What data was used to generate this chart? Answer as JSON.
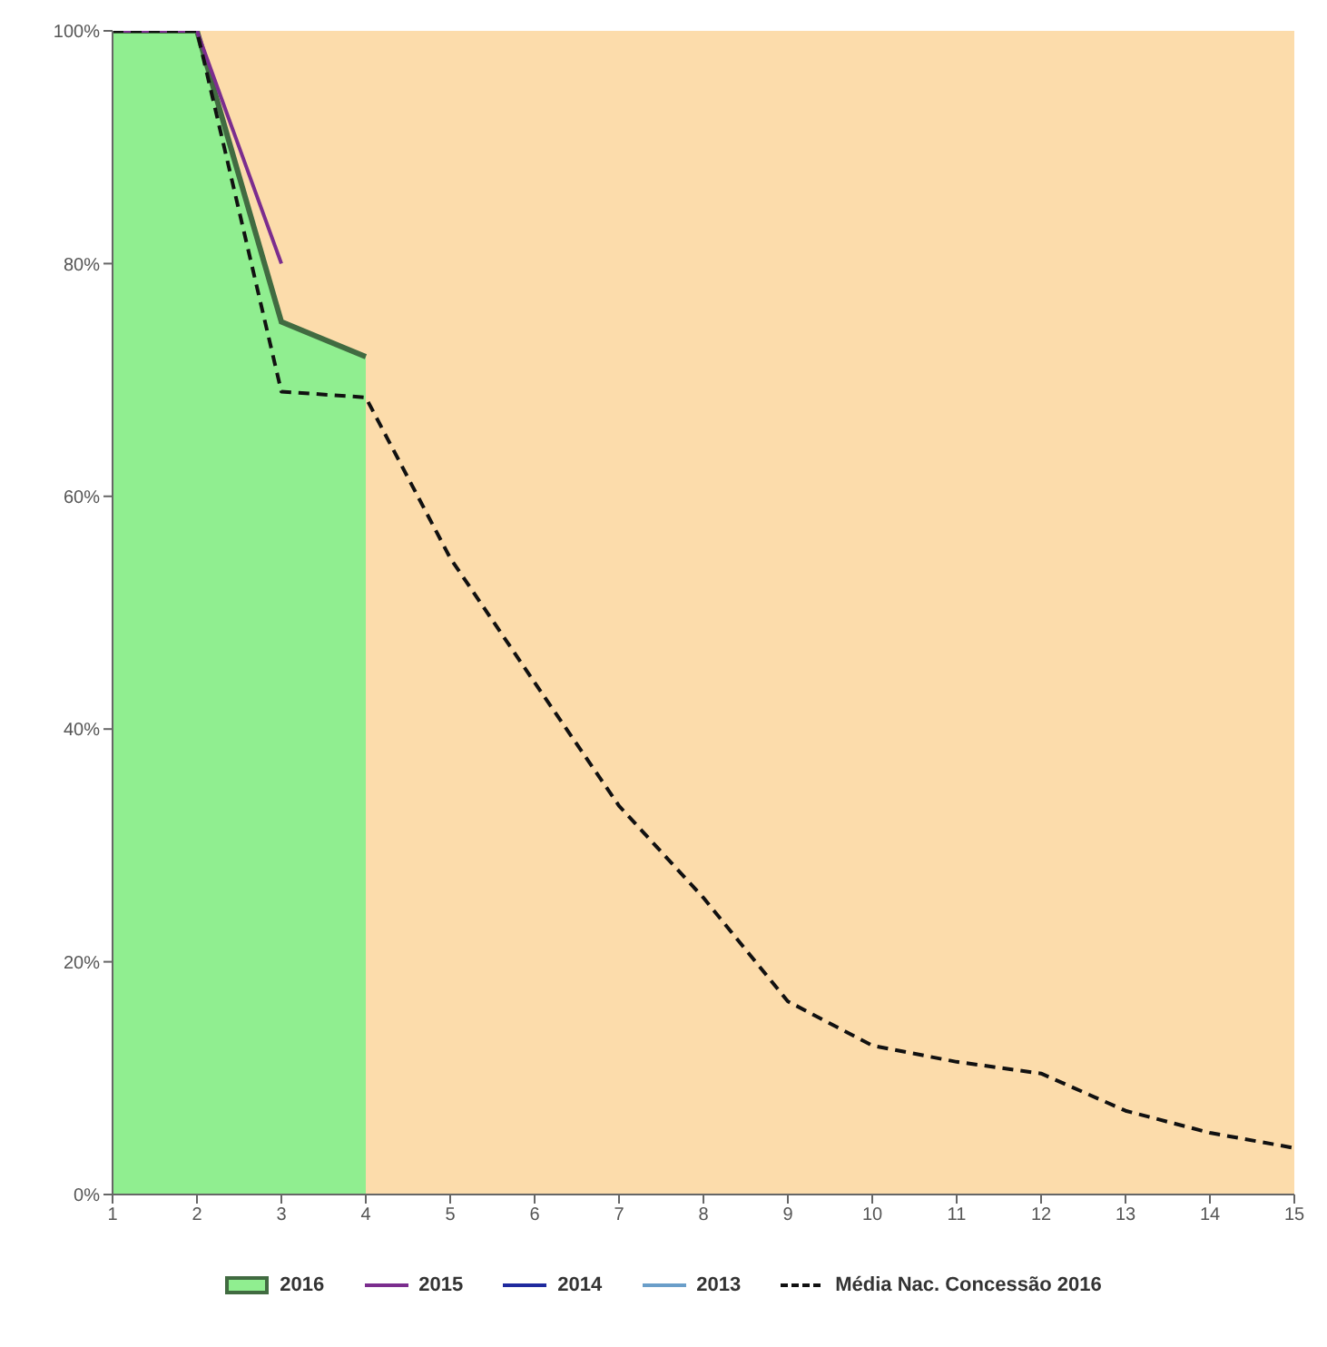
{
  "chart_data": {
    "type": "line",
    "x": [
      1,
      2,
      3,
      4,
      5,
      6,
      7,
      8,
      9,
      10,
      11,
      12,
      13,
      14,
      15
    ],
    "series": [
      {
        "name": "2016",
        "type": "area",
        "color": "#90ee90",
        "values": [
          100,
          100,
          75,
          72,
          null,
          null,
          null,
          null,
          null,
          null,
          null,
          null,
          null,
          null,
          null
        ]
      },
      {
        "name": "2015",
        "color": "#7b2d8e",
        "values": [
          100,
          100,
          80,
          null,
          null,
          null,
          null,
          null,
          null,
          null,
          null,
          null,
          null,
          null,
          null
        ]
      },
      {
        "name": "2014",
        "color": "#1f2a9e",
        "values": [
          null,
          null,
          null,
          null,
          null,
          null,
          null,
          null,
          null,
          null,
          null,
          null,
          null,
          null,
          null
        ]
      },
      {
        "name": "2013",
        "color": "#6a9ec9",
        "values": [
          null,
          null,
          null,
          null,
          null,
          null,
          null,
          null,
          null,
          null,
          null,
          null,
          null,
          null,
          null
        ]
      },
      {
        "name": "Média Nac. Concessão 2016",
        "color": "#111111",
        "line_style": "dashed",
        "values": [
          100,
          100,
          69,
          68.5,
          54.7,
          44,
          33.4,
          25.5,
          16.6,
          12.8,
          11.4,
          10.4,
          7.2,
          5.3,
          4
        ]
      }
    ],
    "bands": [
      {
        "axis": "x",
        "from": 1,
        "to": 15,
        "color": "#fcdcab"
      }
    ],
    "xlim": [
      1,
      15
    ],
    "xticks": [
      1,
      2,
      3,
      4,
      5,
      6,
      7,
      8,
      9,
      10,
      11,
      12,
      13,
      14,
      15
    ],
    "ylim": [
      0,
      100
    ],
    "yticks": [
      {
        "value": 0,
        "label": "0%"
      },
      {
        "value": 20,
        "label": "20%"
      },
      {
        "value": 40,
        "label": "40%"
      },
      {
        "value": 60,
        "label": "60%"
      },
      {
        "value": 80,
        "label": "80%"
      },
      {
        "value": 100,
        "label": "100%"
      }
    ],
    "grid": false,
    "legend": "bottom",
    "marker": "none"
  }
}
